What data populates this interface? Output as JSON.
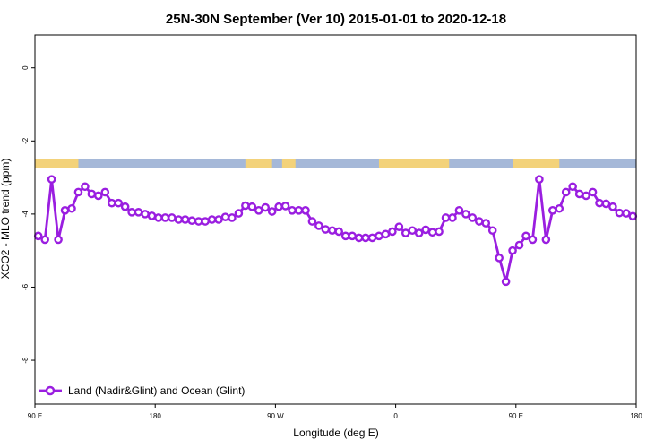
{
  "chart_data": {
    "type": "line",
    "title": "25N-30N September (Ver 10)   2015-01-01 to 2020-12-18",
    "xlabel": "Longitude (deg E)",
    "ylabel": "XCO2 - MLO trend (ppm)",
    "xlim": [
      0,
      180
    ],
    "ylim": [
      -9.2,
      0.9
    ],
    "x_ticks": [
      {
        "value": 0,
        "label": "90 E"
      },
      {
        "value": 36,
        "label": "180"
      },
      {
        "value": 72,
        "label": "90 W"
      },
      {
        "value": 108,
        "label": "0"
      },
      {
        "value": 144,
        "label": "90 E"
      },
      {
        "value": 180,
        "label": "180"
      }
    ],
    "y_ticks": [
      {
        "value": 0,
        "label": "0"
      },
      {
        "value": -2,
        "label": "-2"
      },
      {
        "value": -4,
        "label": "-4"
      },
      {
        "value": -6,
        "label": "-6"
      },
      {
        "value": -8,
        "label": "-8"
      }
    ],
    "land_ocean_strip": {
      "y_range": [
        -2.75,
        -2.5
      ],
      "ocean_color": "#a5b8d8",
      "land_color": "#f3d27a",
      "land_segments": [
        [
          0,
          13
        ],
        [
          63,
          71
        ],
        [
          74,
          78
        ],
        [
          103,
          124
        ],
        [
          143,
          157
        ]
      ]
    },
    "series": [
      {
        "name": "Land (Nadir&Glint) and Ocean (Glint)",
        "color": "#9a1ee0",
        "x": [
          1,
          3,
          5,
          7,
          9,
          11,
          13,
          15,
          17,
          19,
          21,
          23,
          25,
          27,
          29,
          31,
          33,
          35,
          37,
          39,
          41,
          43,
          45,
          47,
          49,
          51,
          53,
          55,
          57,
          59,
          61,
          63,
          65,
          67,
          69,
          71,
          73,
          75,
          77,
          79,
          81,
          83,
          85,
          87,
          89,
          91,
          93,
          95,
          97,
          99,
          101,
          103,
          105,
          107,
          109,
          111,
          113,
          115,
          117,
          119,
          121,
          123,
          125,
          127,
          129,
          131,
          133,
          135,
          137,
          139,
          141,
          143,
          145,
          147,
          149,
          151,
          153,
          155,
          157,
          159,
          161,
          163,
          165,
          167,
          169,
          171,
          173,
          175,
          177,
          179
        ],
        "y": [
          -4.6,
          -4.7,
          -3.05,
          -4.7,
          -3.9,
          -3.85,
          -3.4,
          -3.25,
          -3.45,
          -3.5,
          -3.4,
          -3.7,
          -3.7,
          -3.8,
          -3.95,
          -3.95,
          -4.0,
          -4.05,
          -4.1,
          -4.1,
          -4.1,
          -4.15,
          -4.15,
          -4.18,
          -4.2,
          -4.2,
          -4.15,
          -4.15,
          -4.08,
          -4.1,
          -3.98,
          -3.77,
          -3.8,
          -3.9,
          -3.82,
          -3.93,
          -3.8,
          -3.78,
          -3.9,
          -3.9,
          -3.9,
          -4.2,
          -4.32,
          -4.42,
          -4.45,
          -4.48,
          -4.6,
          -4.6,
          -4.65,
          -4.65,
          -4.65,
          -4.6,
          -4.55,
          -4.48,
          -4.35,
          -4.52,
          -4.45,
          -4.52,
          -4.43,
          -4.5,
          -4.48,
          -4.1,
          -4.1,
          -3.9,
          -4.0,
          -4.1,
          -4.2,
          -4.25,
          -4.45,
          -5.2,
          -5.85,
          -5.0,
          -4.85,
          -4.6,
          -4.7,
          -3.05,
          -4.7,
          -3.9,
          -3.85,
          -3.4,
          -3.25,
          -3.45,
          -3.5,
          -3.4,
          -3.7,
          -3.72,
          -3.8,
          -3.97,
          -3.98,
          -4.06
        ]
      }
    ],
    "legend": {
      "position": "bottom-left",
      "label": "Land (Nadir&Glint) and Ocean (Glint)"
    }
  }
}
